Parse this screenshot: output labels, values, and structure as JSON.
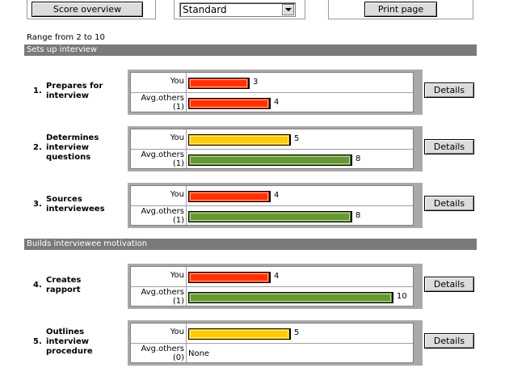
{
  "toolbar": {
    "score_overview_label": "Score overview",
    "view_select": {
      "value": "Standard"
    },
    "print_label": "Print page"
  },
  "range_text": "Range from 2 to 10",
  "colors": {
    "red": "#ff3300",
    "yellow": "#ffcc00",
    "green": "#669933",
    "section_bg": "#7a7a7a"
  },
  "row_labels": {
    "you": "You",
    "avg_line1": "Avg.others"
  },
  "details_label": "Details",
  "sections": [
    {
      "title": "Sets up interview",
      "items": [
        {
          "number": "1.",
          "name_lines": [
            "Prepares for",
            "interview"
          ],
          "you": 3,
          "you_color": "red",
          "avg": 4,
          "avg_color": "red",
          "avg_count": "(1)"
        },
        {
          "number": "2.",
          "name_lines": [
            "Determines",
            "interview",
            "questions"
          ],
          "you": 5,
          "you_color": "yellow",
          "avg": 8,
          "avg_color": "green",
          "avg_count": "(1)"
        },
        {
          "number": "3.",
          "name_lines": [
            "Sources",
            "interviewees"
          ],
          "you": 4,
          "you_color": "red",
          "avg": 8,
          "avg_color": "green",
          "avg_count": "(1)"
        }
      ]
    },
    {
      "title": "Builds interviewee motivation",
      "items": [
        {
          "number": "4.",
          "name_lines": [
            "Creates",
            "rapport"
          ],
          "you": 4,
          "you_color": "red",
          "avg": 10,
          "avg_color": "green",
          "avg_count": "(1)"
        },
        {
          "number": "5.",
          "name_lines": [
            "Outlines",
            "interview",
            "procedure"
          ],
          "you": 5,
          "you_color": "yellow",
          "avg": null,
          "avg_text": "None",
          "avg_count": "(0)"
        }
      ]
    }
  ]
}
